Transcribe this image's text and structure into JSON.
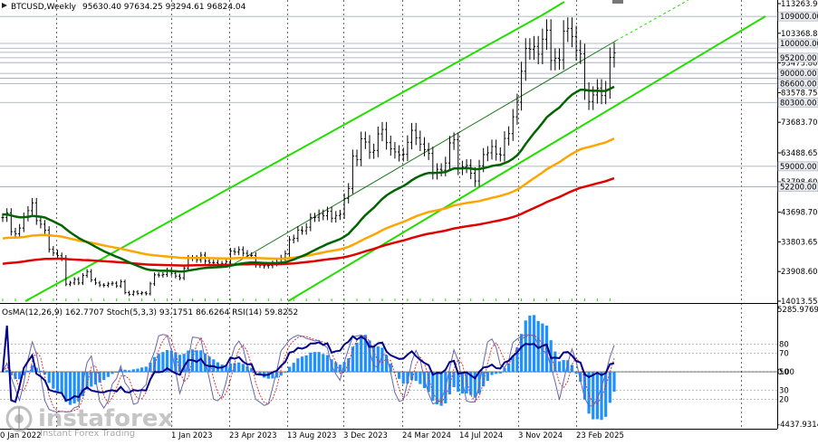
{
  "header": {
    "symbol": "BTCUSD,Weekly",
    "ohlc": "95630.40 97634.25 93294.61 96824.04"
  },
  "indicator_header": "OsMA(12,26,9) 162.7707   Stoch(5,3,3) 93.1751 86.6264   RSI(14) 59.8252",
  "watermark": {
    "name": "instaforex",
    "sub": "Instant Forex Trading"
  },
  "colors": {
    "price": "#000000",
    "ema_fast": "#006400",
    "ema_mid": "#ffa500",
    "ema_slow": "#e00000",
    "channel": "#22dd00",
    "osma": "#1e90ff",
    "rsi": "#00008b",
    "stoch_main": "#6666aa",
    "stoch_signal": "#dd2020",
    "hline": "#9aa3b0"
  },
  "chart_data": {
    "type": "line",
    "title": "BTCUSD,Weekly",
    "main_panel": {
      "ylim": [
        14013.55,
        113263.9
      ],
      "y_ticks": [
        113263.9,
        103368.85,
        93473.8,
        83578.75,
        73683.7,
        63488.65,
        53798.6,
        43698.7,
        33803.65,
        23908.6,
        14013.55
      ],
      "level_labels": [
        "109000.00",
        "100000.00",
        "95200.00",
        "90000.00",
        "86600.00",
        "80300.00",
        "59000.00",
        "52200.00"
      ],
      "levels": [
        109000,
        100000,
        95200,
        90000,
        86600,
        80300,
        59000,
        52200
      ],
      "extra_levels": [
        98400,
        97000,
        93600,
        88400
      ],
      "x_ticks": [
        "0 Jan 2022",
        "1 Jan 2023",
        "23 Apr 2023",
        "13 Aug 2023",
        "3 Dec 2023",
        "24 Mar 2024",
        "14 Jul 2024",
        "3 Nov 2024",
        "23 Feb 2025"
      ],
      "price_close": [
        41900,
        43500,
        37200,
        36500,
        38400,
        42100,
        44200,
        46800,
        40900,
        39700,
        37700,
        31300,
        30100,
        29200,
        28400,
        19700,
        20100,
        21300,
        20100,
        22600,
        23900,
        21100,
        20100,
        19400,
        19300,
        19800,
        20000,
        19100,
        20500,
        16900,
        16300,
        17100,
        16600,
        16800,
        16500,
        19800,
        22800,
        22700,
        22900,
        24300,
        23300,
        22400,
        21800,
        25000,
        28400,
        28400,
        27800,
        29400,
        27400,
        26900,
        26900,
        26400,
        26500,
        27200,
        30700,
        30400,
        31200,
        30000,
        29200,
        29300,
        26100,
        26000,
        25800,
        25900,
        26600,
        27000,
        28500,
        29900,
        34500,
        35000,
        37700,
        37500,
        38700,
        41900,
        42000,
        43100,
        42500,
        44000,
        41700,
        42600,
        43000,
        48300,
        51600,
        62400,
        61200,
        68200,
        67100,
        63700,
        64300,
        69800,
        71300,
        66900,
        64800,
        63800,
        62800,
        63000,
        67000,
        71000,
        68500,
        66400,
        64600,
        63300,
        56600,
        58000,
        57700,
        60100,
        66800,
        67900,
        58100,
        58800,
        59300,
        56700,
        54100,
        59100,
        62900,
        63500,
        65600,
        63100,
        62800,
        68300,
        69900,
        75500,
        80400,
        90700,
        98300,
        98000,
        99000,
        96400,
        101400,
        104400,
        94300,
        95000,
        94500,
        104100,
        105000,
        102300,
        97700,
        96500,
        84100,
        80600,
        82800,
        85100,
        82600,
        84500,
        95300,
        96824
      ],
      "ema_fast_start": 43000,
      "ema_mid_start": 34800,
      "ema_slow_start": 26300
    },
    "indicator_panel": {
      "ylim": [
        -4437.9314,
        5285.9769
      ],
      "y_ticks": [
        5285.9769,
        0,
        -4437.9314
      ],
      "stoch_rsi_levels": [
        80,
        70,
        50,
        30,
        20
      ],
      "osma_value": 162.7707,
      "stoch_main": 93.1751,
      "stoch_signal": 86.6264,
      "rsi": 59.8252
    }
  }
}
